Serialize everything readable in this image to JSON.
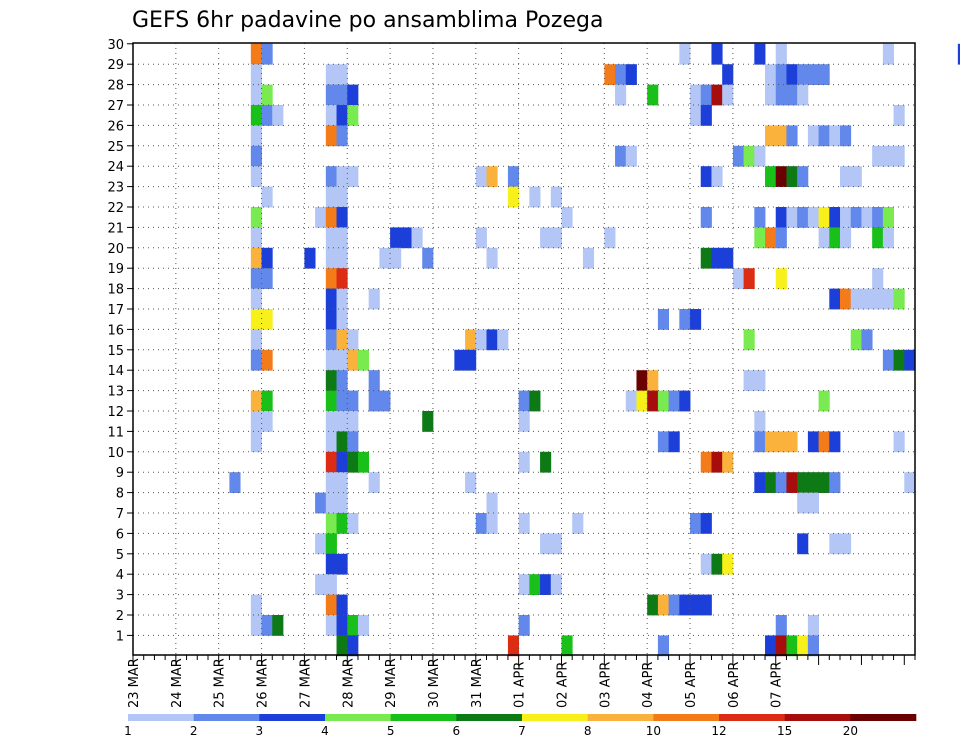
{
  "chart_data": {
    "type": "heatmap",
    "title": "GEFS 6hr padavine po ansamblima Pozega",
    "xlabel": "",
    "ylabel": "",
    "x_tick_labels": [
      "23 MAR",
      "24 MAR",
      "25 MAR",
      "26 MAR",
      "27 MAR",
      "28 MAR",
      "29 MAR",
      "30 MAR",
      "31 MAR",
      "01 APR",
      "02 APR",
      "03 APR",
      "04 APR",
      "05 APR",
      "06 APR",
      "07 APR"
    ],
    "y_tick_labels": [
      "1",
      "2",
      "3",
      "4",
      "5",
      "6",
      "7",
      "8",
      "9",
      "10",
      "11",
      "12",
      "13",
      "14",
      "15",
      "16",
      "17",
      "18",
      "19",
      "20",
      "21",
      "22",
      "23",
      "24",
      "25",
      "26",
      "27",
      "28",
      "29",
      "30"
    ],
    "ylim": [
      0,
      30
    ],
    "time_step_hours": 6,
    "grid": "dotted",
    "colorbar": {
      "position": "bottom",
      "levels": [
        "1",
        "2",
        "3",
        "4",
        "5",
        "6",
        "7",
        "8",
        "10",
        "12",
        "15",
        "20"
      ],
      "colors": [
        "#b3c6f5",
        "#6188ea",
        "#1b3fd8",
        "#79ea4f",
        "#19c019",
        "#0d7a15",
        "#f7f01a",
        "#fbb23c",
        "#f47b1a",
        "#dc2d14",
        "#a80d0d",
        "#6b0000"
      ]
    },
    "cells_note": "each cell: [6h step index since 23 MAR 00Z, ensemble member, color class index]",
    "cells": [
      [
        11,
        30,
        9
      ],
      [
        12,
        30,
        2
      ],
      [
        51,
        30,
        1
      ],
      [
        54,
        30,
        3
      ],
      [
        58,
        30,
        3
      ],
      [
        60,
        30,
        1
      ],
      [
        70,
        30,
        1
      ],
      [
        77,
        30,
        3
      ],
      [
        79,
        30,
        1
      ],
      [
        80,
        30,
        9
      ],
      [
        11,
        29,
        1
      ],
      [
        18,
        29,
        1
      ],
      [
        19,
        29,
        1
      ],
      [
        44,
        29,
        9
      ],
      [
        45,
        29,
        2
      ],
      [
        46,
        29,
        3
      ],
      [
        55,
        29,
        3
      ],
      [
        59,
        29,
        1
      ],
      [
        60,
        29,
        2
      ],
      [
        61,
        29,
        3
      ],
      [
        62,
        29,
        2
      ],
      [
        63,
        29,
        2
      ],
      [
        64,
        29,
        2
      ],
      [
        11,
        28,
        1
      ],
      [
        12,
        28,
        4
      ],
      [
        18,
        28,
        2
      ],
      [
        19,
        28,
        2
      ],
      [
        20,
        28,
        3
      ],
      [
        45,
        28,
        1
      ],
      [
        48,
        28,
        5
      ],
      [
        52,
        28,
        1
      ],
      [
        53,
        28,
        2
      ],
      [
        54,
        28,
        11
      ],
      [
        55,
        28,
        1
      ],
      [
        59,
        28,
        1
      ],
      [
        60,
        28,
        2
      ],
      [
        61,
        28,
        2
      ],
      [
        62,
        28,
        1
      ],
      [
        11,
        27,
        5
      ],
      [
        12,
        27,
        2
      ],
      [
        13,
        27,
        1
      ],
      [
        18,
        27,
        1
      ],
      [
        19,
        27,
        3
      ],
      [
        20,
        27,
        4
      ],
      [
        52,
        27,
        1
      ],
      [
        53,
        27,
        3
      ],
      [
        71,
        27,
        1
      ],
      [
        11,
        26,
        1
      ],
      [
        18,
        26,
        9
      ],
      [
        19,
        26,
        2
      ],
      [
        59,
        26,
        8
      ],
      [
        60,
        26,
        8
      ],
      [
        61,
        26,
        2
      ],
      [
        63,
        26,
        1
      ],
      [
        64,
        26,
        2
      ],
      [
        65,
        26,
        1
      ],
      [
        66,
        26,
        2
      ],
      [
        11,
        25,
        2
      ],
      [
        45,
        25,
        2
      ],
      [
        46,
        25,
        1
      ],
      [
        56,
        25,
        2
      ],
      [
        57,
        25,
        4
      ],
      [
        58,
        25,
        1
      ],
      [
        69,
        25,
        1
      ],
      [
        70,
        25,
        1
      ],
      [
        71,
        25,
        1
      ],
      [
        11,
        24,
        1
      ],
      [
        18,
        24,
        2
      ],
      [
        19,
        24,
        1
      ],
      [
        20,
        24,
        1
      ],
      [
        32,
        24,
        1
      ],
      [
        33,
        24,
        8
      ],
      [
        35,
        24,
        2
      ],
      [
        53,
        24,
        3
      ],
      [
        54,
        24,
        1
      ],
      [
        59,
        24,
        5
      ],
      [
        60,
        24,
        12
      ],
      [
        61,
        24,
        6
      ],
      [
        62,
        24,
        2
      ],
      [
        66,
        24,
        1
      ],
      [
        67,
        24,
        1
      ],
      [
        12,
        23,
        1
      ],
      [
        18,
        23,
        1
      ],
      [
        19,
        23,
        1
      ],
      [
        35,
        23,
        7
      ],
      [
        37,
        23,
        1
      ],
      [
        39,
        23,
        1
      ],
      [
        11,
        22,
        4
      ],
      [
        17,
        22,
        1
      ],
      [
        18,
        22,
        9
      ],
      [
        19,
        22,
        3
      ],
      [
        40,
        22,
        1
      ],
      [
        53,
        22,
        2
      ],
      [
        58,
        22,
        2
      ],
      [
        60,
        22,
        3
      ],
      [
        61,
        22,
        1
      ],
      [
        62,
        22,
        2
      ],
      [
        63,
        22,
        1
      ],
      [
        64,
        22,
        7
      ],
      [
        65,
        22,
        3
      ],
      [
        66,
        22,
        1
      ],
      [
        67,
        22,
        2
      ],
      [
        68,
        22,
        1
      ],
      [
        69,
        22,
        2
      ],
      [
        70,
        22,
        4
      ],
      [
        11,
        21,
        1
      ],
      [
        18,
        21,
        1
      ],
      [
        19,
        21,
        1
      ],
      [
        24,
        21,
        3
      ],
      [
        25,
        21,
        3
      ],
      [
        26,
        21,
        1
      ],
      [
        32,
        21,
        1
      ],
      [
        38,
        21,
        1
      ],
      [
        39,
        21,
        1
      ],
      [
        44,
        21,
        1
      ],
      [
        58,
        21,
        4
      ],
      [
        59,
        21,
        9
      ],
      [
        60,
        21,
        2
      ],
      [
        64,
        21,
        1
      ],
      [
        65,
        21,
        5
      ],
      [
        66,
        21,
        1
      ],
      [
        69,
        21,
        5
      ],
      [
        70,
        21,
        1
      ],
      [
        11,
        20,
        8
      ],
      [
        12,
        20,
        3
      ],
      [
        16,
        20,
        3
      ],
      [
        18,
        20,
        1
      ],
      [
        19,
        20,
        1
      ],
      [
        23,
        20,
        1
      ],
      [
        24,
        20,
        1
      ],
      [
        27,
        20,
        2
      ],
      [
        33,
        20,
        1
      ],
      [
        42,
        20,
        1
      ],
      [
        53,
        20,
        6
      ],
      [
        54,
        20,
        3
      ],
      [
        55,
        20,
        3
      ],
      [
        11,
        19,
        2
      ],
      [
        12,
        19,
        2
      ],
      [
        18,
        19,
        9
      ],
      [
        19,
        19,
        10
      ],
      [
        56,
        19,
        1
      ],
      [
        57,
        19,
        10
      ],
      [
        60,
        19,
        7
      ],
      [
        69,
        19,
        1
      ],
      [
        11,
        18,
        1
      ],
      [
        18,
        18,
        3
      ],
      [
        19,
        18,
        1
      ],
      [
        22,
        18,
        1
      ],
      [
        65,
        18,
        3
      ],
      [
        66,
        18,
        9
      ],
      [
        67,
        18,
        1
      ],
      [
        68,
        18,
        1
      ],
      [
        69,
        18,
        1
      ],
      [
        70,
        18,
        1
      ],
      [
        71,
        18,
        4
      ],
      [
        11,
        17,
        7
      ],
      [
        12,
        17,
        7
      ],
      [
        18,
        17,
        3
      ],
      [
        19,
        17,
        1
      ],
      [
        49,
        17,
        2
      ],
      [
        51,
        17,
        2
      ],
      [
        52,
        17,
        3
      ],
      [
        11,
        16,
        1
      ],
      [
        18,
        16,
        2
      ],
      [
        19,
        16,
        8
      ],
      [
        20,
        16,
        1
      ],
      [
        31,
        16,
        8
      ],
      [
        32,
        16,
        1
      ],
      [
        33,
        16,
        3
      ],
      [
        34,
        16,
        1
      ],
      [
        57,
        16,
        4
      ],
      [
        67,
        16,
        4
      ],
      [
        68,
        16,
        2
      ],
      [
        11,
        15,
        2
      ],
      [
        12,
        15,
        9
      ],
      [
        18,
        15,
        1
      ],
      [
        19,
        15,
        1
      ],
      [
        20,
        15,
        8
      ],
      [
        21,
        15,
        4
      ],
      [
        30,
        15,
        3
      ],
      [
        31,
        15,
        3
      ],
      [
        70,
        15,
        2
      ],
      [
        71,
        15,
        6
      ],
      [
        72,
        15,
        3
      ],
      [
        18,
        14,
        6
      ],
      [
        19,
        14,
        2
      ],
      [
        22,
        14,
        2
      ],
      [
        47,
        14,
        12
      ],
      [
        48,
        14,
        8
      ],
      [
        57,
        14,
        1
      ],
      [
        58,
        14,
        1
      ],
      [
        11,
        13,
        8
      ],
      [
        12,
        13,
        5
      ],
      [
        18,
        13,
        5
      ],
      [
        19,
        13,
        2
      ],
      [
        20,
        13,
        2
      ],
      [
        22,
        13,
        2
      ],
      [
        23,
        13,
        2
      ],
      [
        36,
        13,
        2
      ],
      [
        37,
        13,
        6
      ],
      [
        46,
        13,
        1
      ],
      [
        47,
        13,
        7
      ],
      [
        48,
        13,
        11
      ],
      [
        49,
        13,
        4
      ],
      [
        50,
        13,
        2
      ],
      [
        51,
        13,
        3
      ],
      [
        64,
        13,
        4
      ],
      [
        11,
        12,
        1
      ],
      [
        12,
        12,
        1
      ],
      [
        18,
        12,
        1
      ],
      [
        19,
        12,
        1
      ],
      [
        20,
        12,
        1
      ],
      [
        27,
        12,
        6
      ],
      [
        36,
        12,
        1
      ],
      [
        58,
        12,
        1
      ],
      [
        11,
        11,
        1
      ],
      [
        18,
        11,
        1
      ],
      [
        19,
        11,
        6
      ],
      [
        20,
        11,
        2
      ],
      [
        49,
        11,
        2
      ],
      [
        50,
        11,
        3
      ],
      [
        58,
        11,
        2
      ],
      [
        59,
        11,
        8
      ],
      [
        60,
        11,
        8
      ],
      [
        61,
        11,
        8
      ],
      [
        63,
        11,
        3
      ],
      [
        64,
        11,
        9
      ],
      [
        65,
        11,
        3
      ],
      [
        71,
        11,
        1
      ],
      [
        18,
        10,
        10
      ],
      [
        19,
        10,
        3
      ],
      [
        20,
        10,
        6
      ],
      [
        21,
        10,
        5
      ],
      [
        36,
        10,
        1
      ],
      [
        38,
        10,
        6
      ],
      [
        53,
        10,
        9
      ],
      [
        54,
        10,
        11
      ],
      [
        55,
        10,
        8
      ],
      [
        9,
        9,
        2
      ],
      [
        18,
        9,
        1
      ],
      [
        19,
        9,
        1
      ],
      [
        22,
        9,
        1
      ],
      [
        31,
        9,
        1
      ],
      [
        58,
        9,
        3
      ],
      [
        59,
        9,
        6
      ],
      [
        60,
        9,
        2
      ],
      [
        61,
        9,
        11
      ],
      [
        62,
        9,
        6
      ],
      [
        63,
        9,
        6
      ],
      [
        64,
        9,
        6
      ],
      [
        65,
        9,
        2
      ],
      [
        72,
        9,
        1
      ],
      [
        17,
        8,
        2
      ],
      [
        18,
        8,
        1
      ],
      [
        19,
        8,
        1
      ],
      [
        33,
        8,
        1
      ],
      [
        62,
        8,
        1
      ],
      [
        63,
        8,
        1
      ],
      [
        18,
        7,
        4
      ],
      [
        19,
        7,
        5
      ],
      [
        20,
        7,
        1
      ],
      [
        32,
        7,
        2
      ],
      [
        33,
        7,
        1
      ],
      [
        36,
        7,
        1
      ],
      [
        41,
        7,
        1
      ],
      [
        52,
        7,
        2
      ],
      [
        53,
        7,
        3
      ],
      [
        17,
        6,
        1
      ],
      [
        18,
        6,
        5
      ],
      [
        38,
        6,
        1
      ],
      [
        39,
        6,
        1
      ],
      [
        62,
        6,
        3
      ],
      [
        65,
        6,
        1
      ],
      [
        66,
        6,
        1
      ],
      [
        18,
        5,
        3
      ],
      [
        19,
        5,
        3
      ],
      [
        53,
        5,
        1
      ],
      [
        54,
        5,
        6
      ],
      [
        55,
        5,
        7
      ],
      [
        17,
        4,
        1
      ],
      [
        18,
        4,
        1
      ],
      [
        36,
        4,
        1
      ],
      [
        37,
        4,
        5
      ],
      [
        38,
        4,
        3
      ],
      [
        39,
        4,
        1
      ],
      [
        11,
        3,
        1
      ],
      [
        18,
        3,
        9
      ],
      [
        19,
        3,
        3
      ],
      [
        48,
        3,
        6
      ],
      [
        49,
        3,
        8
      ],
      [
        50,
        3,
        2
      ],
      [
        51,
        3,
        3
      ],
      [
        52,
        3,
        3
      ],
      [
        53,
        3,
        3
      ],
      [
        11,
        2,
        1
      ],
      [
        12,
        2,
        2
      ],
      [
        13,
        2,
        6
      ],
      [
        18,
        2,
        1
      ],
      [
        19,
        2,
        3
      ],
      [
        20,
        2,
        5
      ],
      [
        21,
        2,
        1
      ],
      [
        36,
        2,
        2
      ],
      [
        60,
        2,
        2
      ],
      [
        63,
        2,
        1
      ],
      [
        19,
        1,
        6
      ],
      [
        20,
        1,
        3
      ],
      [
        35,
        1,
        10
      ],
      [
        40,
        1,
        5
      ],
      [
        49,
        1,
        2
      ],
      [
        59,
        1,
        3
      ],
      [
        60,
        1,
        11
      ],
      [
        61,
        1,
        5
      ],
      [
        62,
        1,
        7
      ],
      [
        63,
        1,
        2
      ]
    ]
  }
}
